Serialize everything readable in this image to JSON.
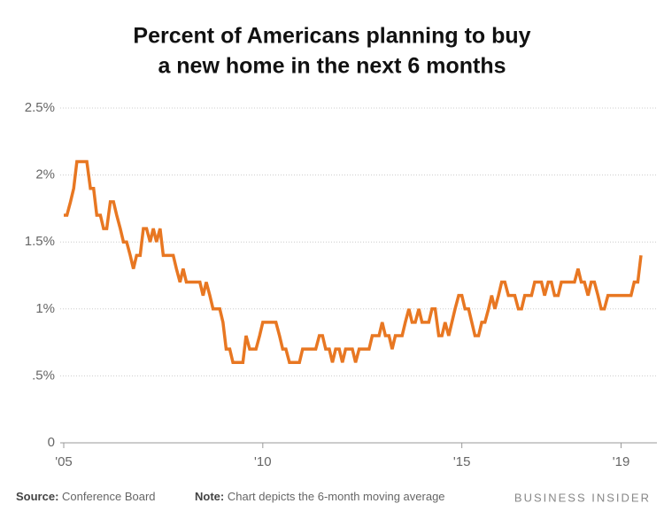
{
  "chart_data": {
    "type": "line",
    "title": [
      "Percent of Americans planning to buy",
      "a new home in the next 6 months"
    ],
    "source_label": "Source:",
    "source": "Conference Board",
    "note_label": "Note:",
    "note": "Chart depicts the 6-month moving average",
    "brand": "BUSINESS INSIDER",
    "xlim": [
      2005,
      2019.5
    ],
    "xticks": [
      {
        "value": 2005,
        "label": "'05"
      },
      {
        "value": 2010,
        "label": "'10"
      },
      {
        "value": 2015,
        "label": "'15"
      },
      {
        "value": 2019,
        "label": "'19"
      }
    ],
    "ylim": [
      0,
      2.5
    ],
    "yticks": [
      0,
      {
        "value": 0.5,
        "label": ".5%"
      },
      {
        "value": 1,
        "label": "1%"
      },
      {
        "value": 1.5,
        "label": "1.5%"
      },
      {
        "value": 2,
        "label": "2%"
      },
      {
        "value": 2.5,
        "label": "2.5%"
      }
    ],
    "grid": true,
    "color": "#e87722",
    "x": [
      2005.0,
      2005.08,
      2005.17,
      2005.25,
      2005.33,
      2005.42,
      2005.5,
      2005.58,
      2005.67,
      2005.75,
      2005.83,
      2005.92,
      2006.0,
      2006.08,
      2006.17,
      2006.25,
      2006.33,
      2006.42,
      2006.5,
      2006.58,
      2006.67,
      2006.75,
      2006.83,
      2006.92,
      2007.0,
      2007.08,
      2007.17,
      2007.25,
      2007.33,
      2007.42,
      2007.5,
      2007.58,
      2007.67,
      2007.75,
      2007.83,
      2007.92,
      2008.0,
      2008.08,
      2008.17,
      2008.25,
      2008.33,
      2008.42,
      2008.5,
      2008.58,
      2008.67,
      2008.75,
      2008.83,
      2008.92,
      2009.0,
      2009.08,
      2009.17,
      2009.25,
      2009.33,
      2009.42,
      2009.5,
      2009.58,
      2009.67,
      2009.75,
      2009.83,
      2009.92,
      2010.0,
      2010.08,
      2010.17,
      2010.25,
      2010.33,
      2010.42,
      2010.5,
      2010.58,
      2010.67,
      2010.75,
      2010.83,
      2010.92,
      2011.0,
      2011.08,
      2011.17,
      2011.25,
      2011.33,
      2011.42,
      2011.5,
      2011.58,
      2011.67,
      2011.75,
      2011.83,
      2011.92,
      2012.0,
      2012.08,
      2012.17,
      2012.25,
      2012.33,
      2012.42,
      2012.5,
      2012.58,
      2012.67,
      2012.75,
      2012.83,
      2012.92,
      2013.0,
      2013.08,
      2013.17,
      2013.25,
      2013.33,
      2013.42,
      2013.5,
      2013.58,
      2013.67,
      2013.75,
      2013.83,
      2013.92,
      2014.0,
      2014.08,
      2014.17,
      2014.25,
      2014.33,
      2014.42,
      2014.5,
      2014.58,
      2014.67,
      2014.75,
      2014.83,
      2014.92,
      2015.0,
      2015.08,
      2015.17,
      2015.25,
      2015.33,
      2015.42,
      2015.5,
      2015.58,
      2015.67,
      2015.75,
      2015.83,
      2015.92,
      2016.0,
      2016.08,
      2016.17,
      2016.25,
      2016.33,
      2016.42,
      2016.5,
      2016.58,
      2016.67,
      2016.75,
      2016.83,
      2016.92,
      2017.0,
      2017.08,
      2017.17,
      2017.25,
      2017.33,
      2017.42,
      2017.5,
      2017.58,
      2017.67,
      2017.75,
      2017.83,
      2017.92,
      2018.0,
      2018.08,
      2018.17,
      2018.25,
      2018.33,
      2018.42,
      2018.5,
      2018.58,
      2018.67,
      2018.75,
      2018.83,
      2018.92,
      2019.0,
      2019.08,
      2019.17,
      2019.25,
      2019.33,
      2019.42,
      2019.5
    ],
    "values": [
      1.7,
      1.7,
      1.8,
      1.9,
      2.1,
      2.1,
      2.1,
      2.1,
      1.9,
      1.9,
      1.7,
      1.7,
      1.6,
      1.6,
      1.8,
      1.8,
      1.7,
      1.6,
      1.5,
      1.5,
      1.4,
      1.3,
      1.4,
      1.4,
      1.6,
      1.6,
      1.5,
      1.6,
      1.5,
      1.6,
      1.4,
      1.4,
      1.4,
      1.4,
      1.3,
      1.2,
      1.3,
      1.2,
      1.2,
      1.2,
      1.2,
      1.2,
      1.1,
      1.2,
      1.1,
      1.0,
      1.0,
      1.0,
      0.9,
      0.7,
      0.7,
      0.6,
      0.6,
      0.6,
      0.6,
      0.8,
      0.7,
      0.7,
      0.7,
      0.8,
      0.9,
      0.9,
      0.9,
      0.9,
      0.9,
      0.8,
      0.7,
      0.7,
      0.6,
      0.6,
      0.6,
      0.6,
      0.7,
      0.7,
      0.7,
      0.7,
      0.7,
      0.8,
      0.8,
      0.7,
      0.7,
      0.6,
      0.7,
      0.7,
      0.6,
      0.7,
      0.7,
      0.7,
      0.6,
      0.7,
      0.7,
      0.7,
      0.7,
      0.8,
      0.8,
      0.8,
      0.9,
      0.8,
      0.8,
      0.7,
      0.8,
      0.8,
      0.8,
      0.9,
      1.0,
      0.9,
      0.9,
      1.0,
      0.9,
      0.9,
      0.9,
      1.0,
      1.0,
      0.8,
      0.8,
      0.9,
      0.8,
      0.9,
      1.0,
      1.1,
      1.1,
      1.0,
      1.0,
      0.9,
      0.8,
      0.8,
      0.9,
      0.9,
      1.0,
      1.1,
      1.0,
      1.1,
      1.2,
      1.2,
      1.1,
      1.1,
      1.1,
      1.0,
      1.0,
      1.1,
      1.1,
      1.1,
      1.2,
      1.2,
      1.2,
      1.1,
      1.2,
      1.2,
      1.1,
      1.1,
      1.2,
      1.2,
      1.2,
      1.2,
      1.2,
      1.3,
      1.2,
      1.2,
      1.1,
      1.2,
      1.2,
      1.1,
      1.0,
      1.0,
      1.1,
      1.1,
      1.1,
      1.1,
      1.1,
      1.1,
      1.1,
      1.1,
      1.2,
      1.2,
      1.4
    ]
  }
}
